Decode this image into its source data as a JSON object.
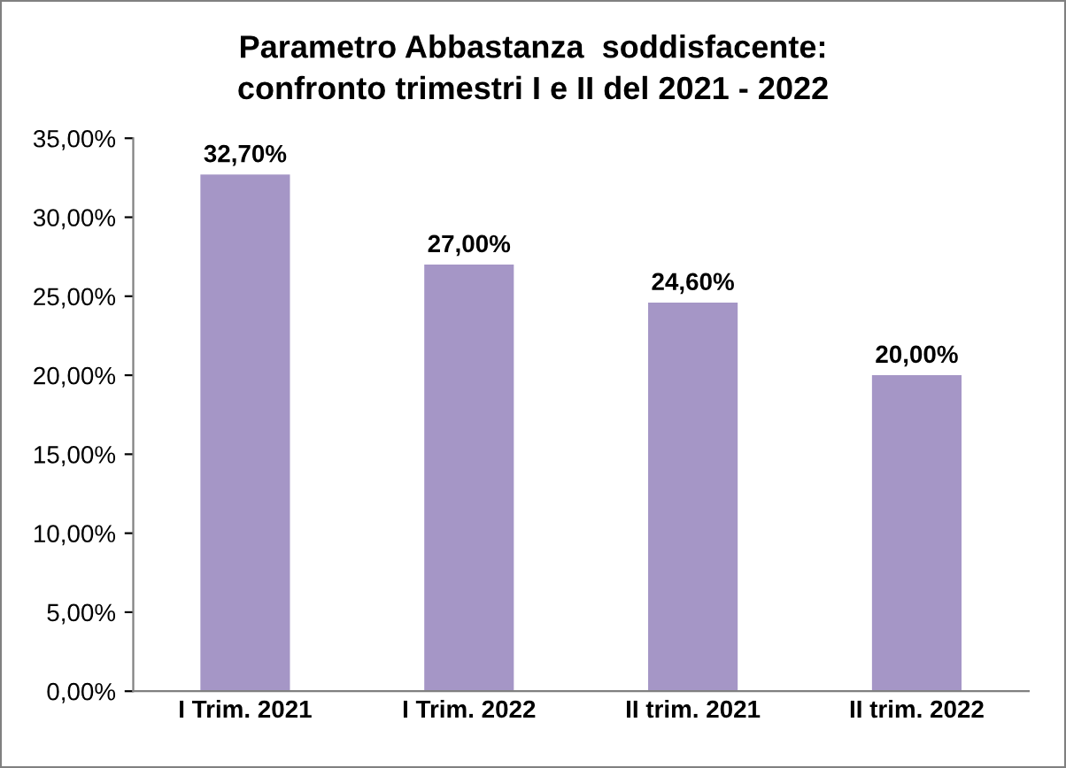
{
  "chart_data": {
    "type": "bar",
    "title": "Parametro Abbastanza  soddisfacente:\nconfronto trimestri I e II del 2021 - 2022",
    "categories": [
      "I Trim. 2021",
      "I Trim. 2022",
      "II trim. 2021",
      "II trim. 2022"
    ],
    "values": [
      32.7,
      27.0,
      24.6,
      20.0
    ],
    "value_labels": [
      "32,70%",
      "27,00%",
      "24,60%",
      "20,00%"
    ],
    "color": "#a596c6",
    "ylim": [
      0,
      35
    ],
    "yticks": [
      {
        "value": 0,
        "label": "0,00%"
      },
      {
        "value": 5,
        "label": "5,00%"
      },
      {
        "value": 10,
        "label": "10,00%"
      },
      {
        "value": 15,
        "label": "15,00%"
      },
      {
        "value": 20,
        "label": "20,00%"
      },
      {
        "value": 25,
        "label": "25,00%"
      },
      {
        "value": 30,
        "label": "30,00%"
      },
      {
        "value": 35,
        "label": "35,00%"
      }
    ],
    "grid": false
  }
}
